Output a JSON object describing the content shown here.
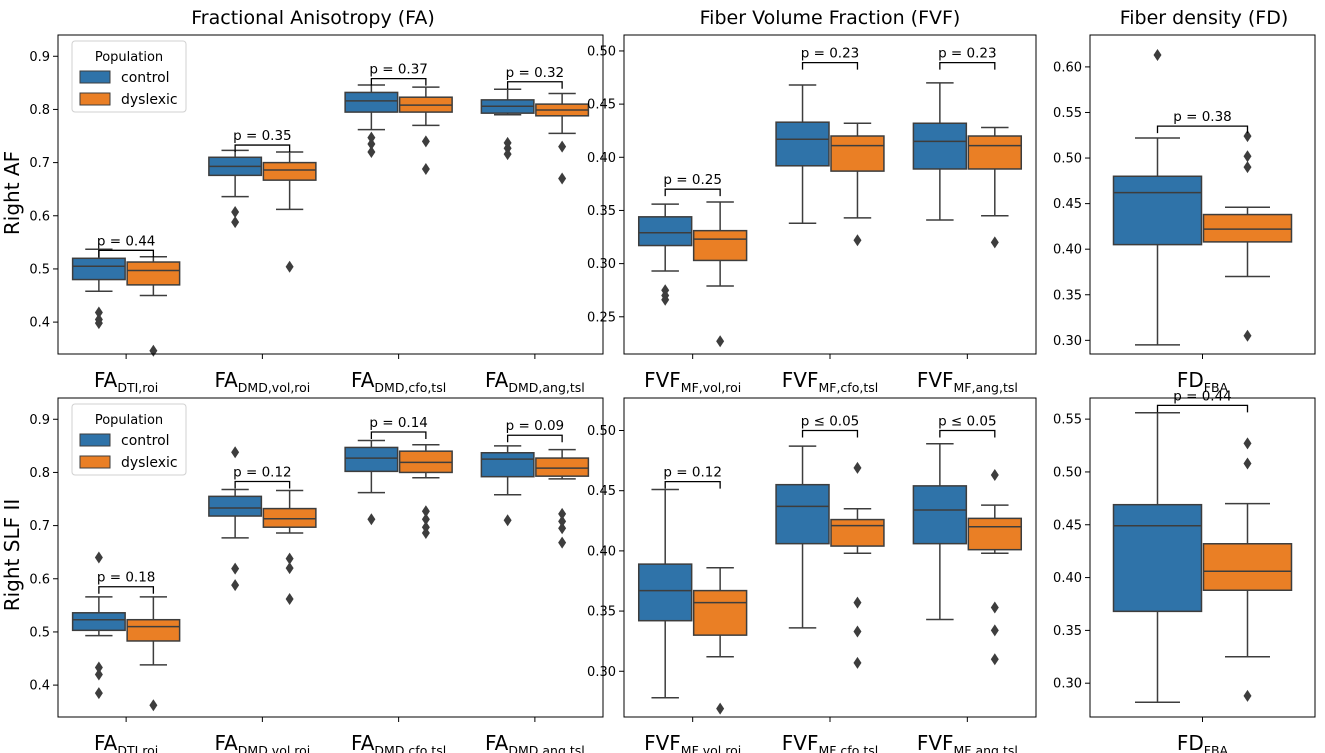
{
  "colors": {
    "control": "#2f73a9",
    "dyslexic": "#ea7f25",
    "line": "#3d3d3d",
    "outlier": "#3d3d3d"
  },
  "column_titles": {
    "fa": "Fractional Anisotropy (FA)",
    "fvf": "Fiber Volume Fraction (FVF)",
    "fd": "Fiber density (FD)"
  },
  "row_labels": {
    "af": "Right AF",
    "slf": "Right SLF II"
  },
  "legend": {
    "title": "Population",
    "control": "control",
    "dyslexic": "dyslexic"
  },
  "chart_data": [
    {
      "id": "fa-af",
      "type": "box",
      "title": "Fractional Anisotropy (FA)",
      "ylabel": "Right AF",
      "ylim": [
        0.34,
        0.94
      ],
      "yticks": [
        0.4,
        0.5,
        0.6,
        0.7,
        0.8,
        0.9
      ],
      "categories": [
        {
          "base": "FA",
          "sub": "DTI,roi",
          "p": "p = 0.44",
          "bracket_y": 0.535,
          "control": {
            "whislo": 0.458,
            "q1": 0.48,
            "med": 0.505,
            "q3": 0.52,
            "whishi": 0.537,
            "fliers": [
              0.418,
              0.405,
              0.398
            ]
          },
          "dyslexic": {
            "whislo": 0.45,
            "q1": 0.47,
            "med": 0.497,
            "q3": 0.513,
            "whishi": 0.523,
            "fliers": [
              0.346
            ]
          }
        },
        {
          "base": "FA",
          "sub": "DMD,vol,roi",
          "p": "p = 0.35",
          "bracket_y": 0.733,
          "control": {
            "whislo": 0.636,
            "q1": 0.676,
            "med": 0.693,
            "q3": 0.71,
            "whishi": 0.723,
            "fliers": [
              0.607,
              0.588
            ]
          },
          "dyslexic": {
            "whislo": 0.612,
            "q1": 0.667,
            "med": 0.686,
            "q3": 0.7,
            "whishi": 0.72,
            "fliers": [
              0.504
            ]
          }
        },
        {
          "base": "FA",
          "sub": "DMD,cfo,tsl",
          "p": "p = 0.37",
          "bracket_y": 0.858,
          "control": {
            "whislo": 0.762,
            "q1": 0.795,
            "med": 0.816,
            "q3": 0.832,
            "whishi": 0.846,
            "fliers": [
              0.747,
              0.735,
              0.72
            ]
          },
          "dyslexic": {
            "whislo": 0.77,
            "q1": 0.795,
            "med": 0.808,
            "q3": 0.823,
            "whishi": 0.842,
            "fliers": [
              0.74,
              0.688
            ]
          }
        },
        {
          "base": "FA",
          "sub": "DMD,ang,tsl",
          "p": "p = 0.32",
          "bracket_y": 0.852,
          "control": {
            "whislo": 0.79,
            "q1": 0.793,
            "med": 0.806,
            "q3": 0.818,
            "whishi": 0.838,
            "fliers": [
              0.737,
              0.727,
              0.716
            ]
          },
          "dyslexic": {
            "whislo": 0.755,
            "q1": 0.788,
            "med": 0.799,
            "q3": 0.81,
            "whishi": 0.83,
            "fliers": [
              0.73,
              0.67
            ]
          }
        }
      ]
    },
    {
      "id": "fvf-af",
      "type": "box",
      "title": "Fiber Volume Fraction (FVF)",
      "ylim": [
        0.215,
        0.515
      ],
      "yticks": [
        0.25,
        0.3,
        0.35,
        0.4,
        0.45,
        0.5
      ],
      "categories": [
        {
          "base": "FVF",
          "sub": "MF,vol,roi",
          "p": "p = 0.25",
          "bracket_y": 0.37,
          "control": {
            "whislo": 0.293,
            "q1": 0.317,
            "med": 0.329,
            "q3": 0.344,
            "whishi": 0.356,
            "fliers": [
              0.275,
              0.27,
              0.266
            ]
          },
          "dyslexic": {
            "whislo": 0.279,
            "q1": 0.303,
            "med": 0.323,
            "q3": 0.331,
            "whishi": 0.358,
            "fliers": [
              0.227
            ]
          }
        },
        {
          "base": "FVF",
          "sub": "MF,cfo,tsl",
          "p": "p = 0.23",
          "bracket_y": 0.489,
          "control": {
            "whislo": 0.338,
            "q1": 0.392,
            "med": 0.417,
            "q3": 0.433,
            "whishi": 0.468,
            "fliers": []
          },
          "dyslexic": {
            "whislo": 0.343,
            "q1": 0.387,
            "med": 0.411,
            "q3": 0.42,
            "whishi": 0.432,
            "fliers": [
              0.322
            ]
          }
        },
        {
          "base": "FVF",
          "sub": "MF,ang,tsl",
          "p": "p = 0.23",
          "bracket_y": 0.489,
          "control": {
            "whislo": 0.341,
            "q1": 0.389,
            "med": 0.415,
            "q3": 0.432,
            "whishi": 0.47,
            "fliers": []
          },
          "dyslexic": {
            "whislo": 0.345,
            "q1": 0.389,
            "med": 0.411,
            "q3": 0.42,
            "whishi": 0.428,
            "fliers": [
              0.32
            ]
          }
        }
      ]
    },
    {
      "id": "fd-af",
      "type": "box",
      "title": "Fiber density (FD)",
      "ylim": [
        0.285,
        0.635
      ],
      "yticks": [
        0.3,
        0.35,
        0.4,
        0.45,
        0.5,
        0.55,
        0.6
      ],
      "categories": [
        {
          "base": "FD",
          "sub": "FBA",
          "p": "p = 0.38",
          "bracket_y": 0.535,
          "control": {
            "whislo": 0.295,
            "q1": 0.405,
            "med": 0.462,
            "q3": 0.48,
            "whishi": 0.522,
            "fliers": [
              0.613
            ]
          },
          "dyslexic": {
            "whislo": 0.37,
            "q1": 0.408,
            "med": 0.422,
            "q3": 0.438,
            "whishi": 0.446,
            "fliers": [
              0.524,
              0.502,
              0.49,
              0.305
            ]
          }
        }
      ]
    },
    {
      "id": "fa-slf",
      "type": "box",
      "ylabel": "Right SLF II",
      "ylim": [
        0.34,
        0.94
      ],
      "yticks": [
        0.4,
        0.5,
        0.6,
        0.7,
        0.8,
        0.9
      ],
      "categories": [
        {
          "base": "FA",
          "sub": "DTI,roi",
          "p": "p = 0.18",
          "bracket_y": 0.585,
          "control": {
            "whislo": 0.493,
            "q1": 0.503,
            "med": 0.523,
            "q3": 0.536,
            "whishi": 0.566,
            "fliers": [
              0.64,
              0.433,
              0.42,
              0.385
            ]
          },
          "dyslexic": {
            "whislo": 0.438,
            "q1": 0.483,
            "med": 0.51,
            "q3": 0.523,
            "whishi": 0.566,
            "fliers": [
              0.362
            ]
          }
        },
        {
          "base": "FA",
          "sub": "DMD,vol,roi",
          "p": "p = 0.12",
          "bracket_y": 0.783,
          "control": {
            "whislo": 0.677,
            "q1": 0.718,
            "med": 0.733,
            "q3": 0.755,
            "whishi": 0.768,
            "fliers": [
              0.838,
              0.619,
              0.588
            ]
          },
          "dyslexic": {
            "whislo": 0.686,
            "q1": 0.697,
            "med": 0.713,
            "q3": 0.732,
            "whishi": 0.766,
            "fliers": [
              0.638,
              0.62,
              0.562
            ]
          }
        },
        {
          "base": "FA",
          "sub": "DMD,cfo,tsl",
          "p": "p = 0.14",
          "bracket_y": 0.876,
          "control": {
            "whislo": 0.762,
            "q1": 0.802,
            "med": 0.827,
            "q3": 0.847,
            "whishi": 0.86,
            "fliers": [
              0.712
            ]
          },
          "dyslexic": {
            "whislo": 0.79,
            "q1": 0.8,
            "med": 0.819,
            "q3": 0.84,
            "whishi": 0.852,
            "fliers": [
              0.727,
              0.712,
              0.697,
              0.686
            ]
          }
        },
        {
          "base": "FA",
          "sub": "DMD,ang,tsl",
          "p": "p = 0.09",
          "bracket_y": 0.87,
          "control": {
            "whislo": 0.758,
            "q1": 0.792,
            "med": 0.825,
            "q3": 0.837,
            "whishi": 0.85,
            "fliers": [
              0.71
            ]
          },
          "dyslexic": {
            "whislo": 0.788,
            "q1": 0.793,
            "med": 0.808,
            "q3": 0.827,
            "whishi": 0.843,
            "fliers": [
              0.722,
              0.708,
              0.695,
              0.668
            ]
          }
        }
      ]
    },
    {
      "id": "fvf-slf",
      "type": "box",
      "ylim": [
        0.262,
        0.527
      ],
      "yticks": [
        0.3,
        0.35,
        0.4,
        0.45,
        0.5
      ],
      "categories": [
        {
          "base": "FVF",
          "sub": "MF,vol,roi",
          "p": "p = 0.12",
          "bracket_y": 0.4575,
          "control": {
            "whislo": 0.278,
            "q1": 0.342,
            "med": 0.367,
            "q3": 0.389,
            "whishi": 0.451,
            "fliers": []
          },
          "dyslexic": {
            "whislo": 0.312,
            "q1": 0.33,
            "med": 0.357,
            "q3": 0.367,
            "whishi": 0.386,
            "fliers": [
              0.269
            ]
          }
        },
        {
          "base": "FVF",
          "sub": "MF,cfo,tsl",
          "p": "p ≤ 0.05",
          "bracket_y": 0.5,
          "control": {
            "whislo": 0.336,
            "q1": 0.406,
            "med": 0.437,
            "q3": 0.455,
            "whishi": 0.487,
            "fliers": []
          },
          "dyslexic": {
            "whislo": 0.398,
            "q1": 0.404,
            "med": 0.421,
            "q3": 0.426,
            "whishi": 0.435,
            "fliers": [
              0.469,
              0.357,
              0.333,
              0.307
            ]
          }
        },
        {
          "base": "FVF",
          "sub": "MF,ang,tsl",
          "p": "p ≤ 0.05",
          "bracket_y": 0.5,
          "control": {
            "whislo": 0.343,
            "q1": 0.406,
            "med": 0.434,
            "q3": 0.454,
            "whishi": 0.489,
            "fliers": []
          },
          "dyslexic": {
            "whislo": 0.398,
            "q1": 0.401,
            "med": 0.42,
            "q3": 0.427,
            "whishi": 0.438,
            "fliers": [
              0.463,
              0.353,
              0.334,
              0.31
            ]
          }
        }
      ]
    },
    {
      "id": "fd-slf",
      "type": "box",
      "ylim": [
        0.268,
        0.57
      ],
      "yticks": [
        0.3,
        0.35,
        0.4,
        0.45,
        0.5,
        0.55
      ],
      "categories": [
        {
          "base": "FD",
          "sub": "FBA",
          "p": "p = 0.44",
          "bracket_y": 0.563,
          "control": {
            "whislo": 0.282,
            "q1": 0.368,
            "med": 0.449,
            "q3": 0.469,
            "whishi": 0.556,
            "fliers": []
          },
          "dyslexic": {
            "whislo": 0.325,
            "q1": 0.388,
            "med": 0.406,
            "q3": 0.432,
            "whishi": 0.47,
            "fliers": [
              0.527,
              0.508,
              0.288
            ]
          }
        }
      ]
    }
  ]
}
